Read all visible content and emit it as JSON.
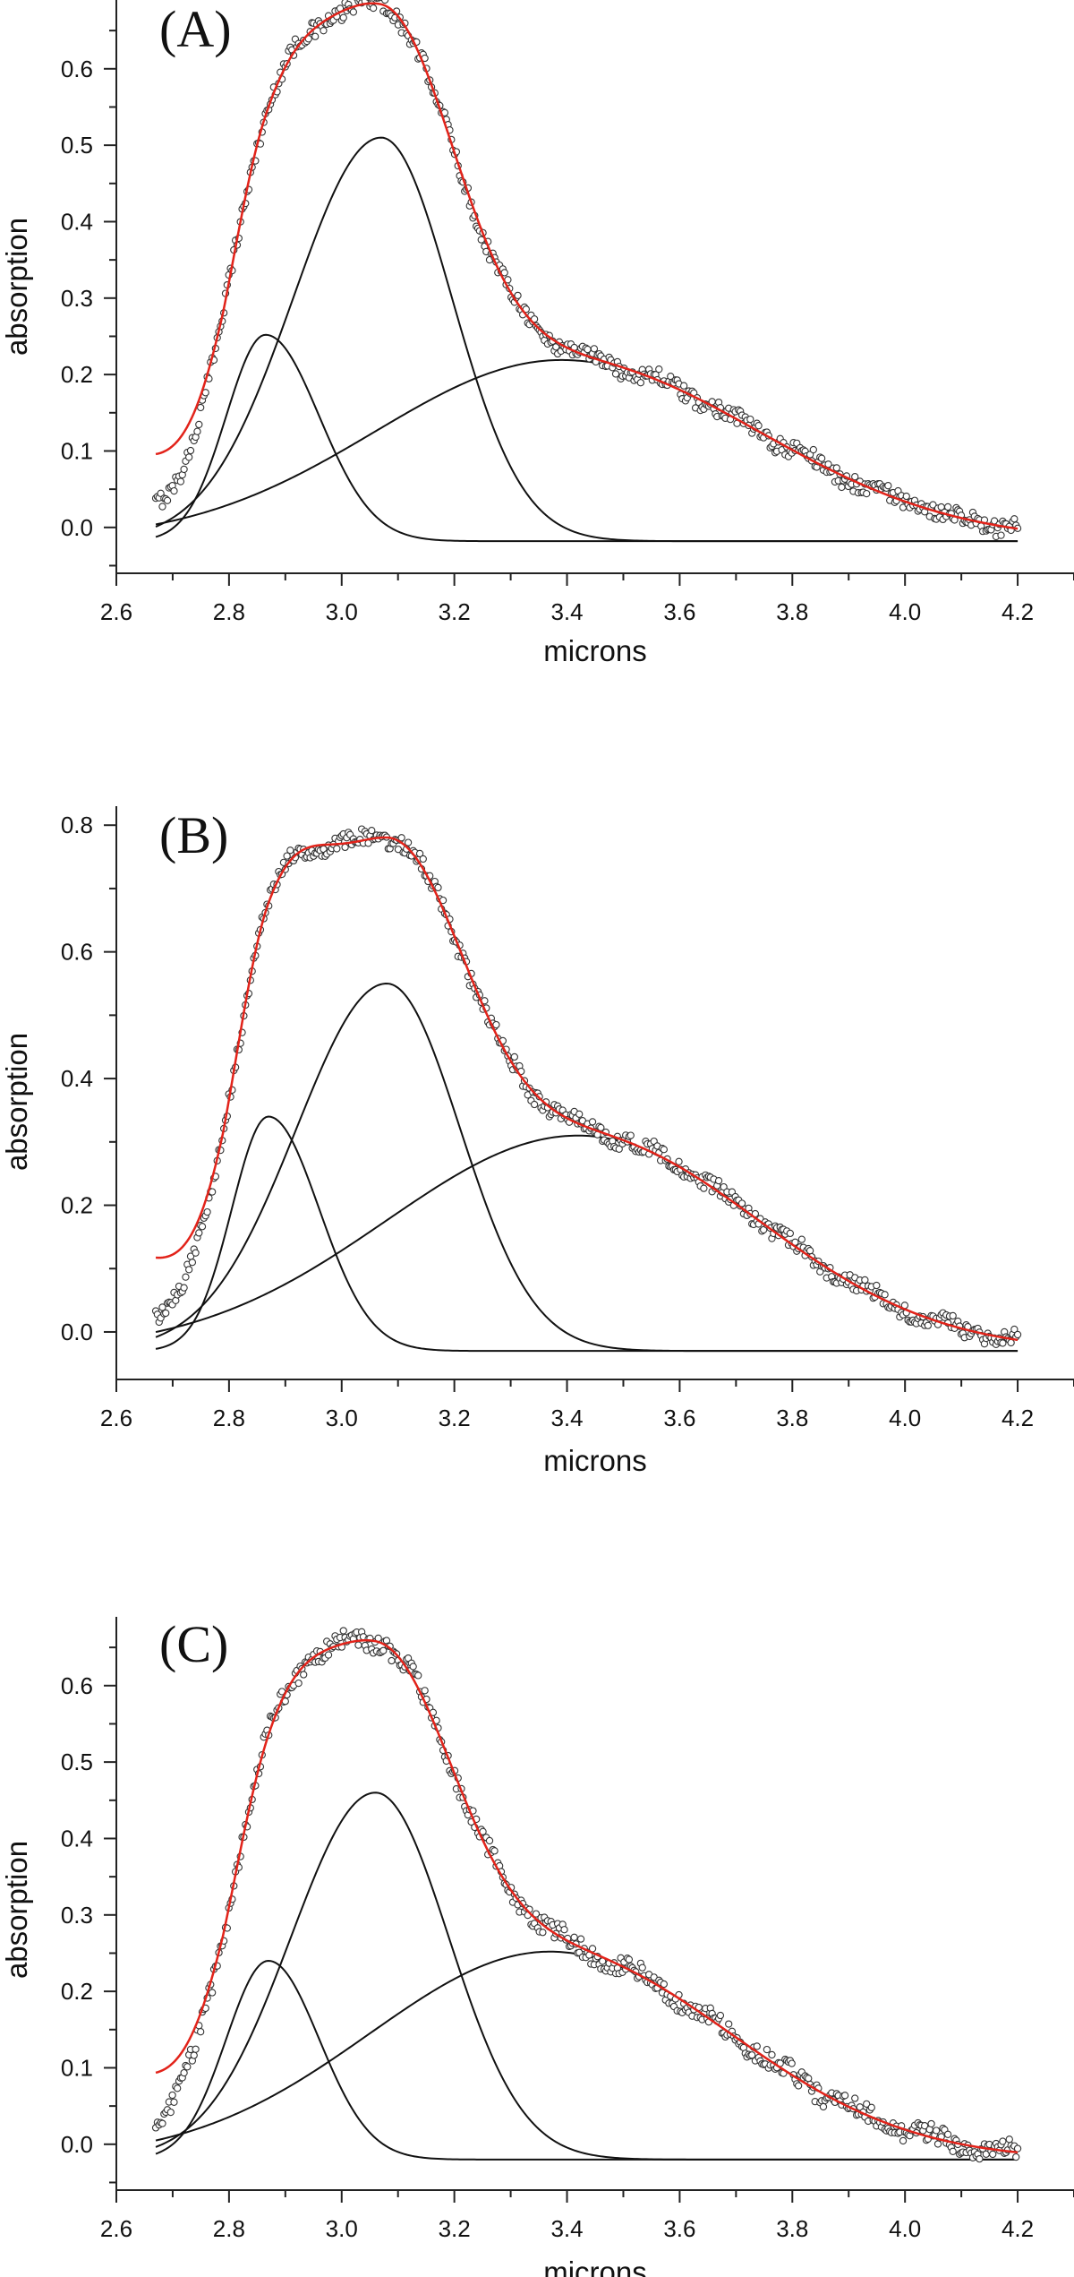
{
  "figure": {
    "description_visible": false
  },
  "chart_data": [
    {
      "type": "line",
      "panel_label": "(A)",
      "xlabel": "microns",
      "ylabel": "absorption",
      "xlim": [
        2.6,
        4.3
      ],
      "ylim": [
        -0.06,
        0.69
      ],
      "x_ticks": [
        2.6,
        2.8,
        3.0,
        3.2,
        3.4,
        3.6,
        3.8,
        4.0,
        4.2
      ],
      "x_tick_labels": [
        "2.6",
        "2.8",
        "3.0",
        "3.2",
        "3.4",
        "3.6",
        "3.8",
        "4.0",
        "4.2"
      ],
      "y_ticks": [
        0.0,
        0.1,
        0.2,
        0.3,
        0.4,
        0.5,
        0.6
      ],
      "y_tick_labels": [
        "0.0",
        "0.1",
        "0.2",
        "0.3",
        "0.4",
        "0.5",
        "0.6"
      ],
      "x_range": [
        2.67,
        4.2
      ],
      "baseline": -0.018,
      "components": [
        {
          "name": "2.87 micron component",
          "amplitude": 0.27,
          "center": 2.865,
          "left_width": 0.07,
          "right_width": 0.095
        },
        {
          "name": "3.07 micron component",
          "amplitude": 0.528,
          "center": 3.07,
          "left_width": 0.155,
          "right_width": 0.125
        },
        {
          "name": "3.40 micron component",
          "amplitude": 0.237,
          "center": 3.39,
          "left_width": 0.33,
          "right_width": 0.35
        }
      ],
      "observed_noise": 0.011,
      "colors": {
        "fit": "#e2231a",
        "components": "#111111",
        "observed": "#333333"
      }
    },
    {
      "type": "line",
      "panel_label": "(B)",
      "xlabel": "microns",
      "ylabel": "absorption",
      "xlim": [
        2.6,
        4.3
      ],
      "ylim": [
        -0.075,
        0.83
      ],
      "x_ticks": [
        2.6,
        2.8,
        3.0,
        3.2,
        3.4,
        3.6,
        3.8,
        4.0,
        4.2
      ],
      "x_tick_labels": [
        "2.6",
        "2.8",
        "3.0",
        "3.2",
        "3.4",
        "3.6",
        "3.8",
        "4.0",
        "4.2"
      ],
      "y_ticks": [
        0.0,
        0.2,
        0.4,
        0.6,
        0.8
      ],
      "y_tick_labels": [
        "0.0",
        "0.2",
        "0.4",
        "0.6",
        "0.8"
      ],
      "x_range": [
        2.67,
        4.2
      ],
      "baseline": -0.03,
      "components": [
        {
          "name": "2.87 micron component",
          "amplitude": 0.37,
          "center": 2.87,
          "left_width": 0.065,
          "right_width": 0.09
        },
        {
          "name": "3.08 micron component",
          "amplitude": 0.58,
          "center": 3.08,
          "left_width": 0.16,
          "right_width": 0.13
        },
        {
          "name": "3.42 micron component",
          "amplitude": 0.34,
          "center": 3.42,
          "left_width": 0.34,
          "right_width": 0.32
        }
      ],
      "observed_noise": 0.013,
      "colors": {
        "fit": "#e2231a",
        "components": "#111111",
        "observed": "#333333"
      }
    },
    {
      "type": "line",
      "panel_label": "(C)",
      "xlabel": "microns",
      "ylabel": "absorption",
      "xlim": [
        2.6,
        4.3
      ],
      "ylim": [
        -0.06,
        0.69
      ],
      "x_ticks": [
        2.6,
        2.8,
        3.0,
        3.2,
        3.4,
        3.6,
        3.8,
        4.0,
        4.2
      ],
      "x_tick_labels": [
        "2.6",
        "2.8",
        "3.0",
        "3.2",
        "3.4",
        "3.6",
        "3.8",
        "4.0",
        "4.2"
      ],
      "y_ticks": [
        0.0,
        0.1,
        0.2,
        0.3,
        0.4,
        0.5,
        0.6
      ],
      "y_tick_labels": [
        "0.0",
        "0.1",
        "0.2",
        "0.3",
        "0.4",
        "0.5",
        "0.6"
      ],
      "x_range": [
        2.67,
        4.2
      ],
      "baseline": -0.02,
      "components": [
        {
          "name": "2.87 micron component",
          "amplitude": 0.26,
          "center": 2.87,
          "left_width": 0.075,
          "right_width": 0.09
        },
        {
          "name": "3.06 micron component",
          "amplitude": 0.48,
          "center": 3.06,
          "left_width": 0.15,
          "right_width": 0.13
        },
        {
          "name": "3.37 micron component",
          "amplitude": 0.272,
          "center": 3.37,
          "left_width": 0.32,
          "right_width": 0.32
        }
      ],
      "observed_noise": 0.012,
      "colors": {
        "fit": "#e2231a",
        "components": "#111111",
        "observed": "#333333"
      }
    }
  ]
}
